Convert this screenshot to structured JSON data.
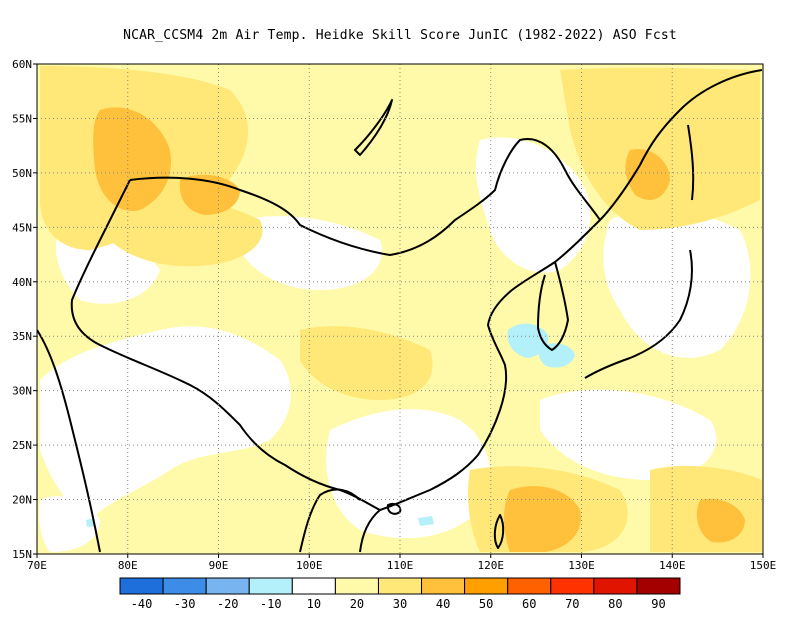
{
  "title": "NCAR_CCSM4  2m Air Temp. Heidke Skill Score JunIC (1982-2022) ASO Fcst",
  "map": {
    "lon_labels": [
      "70E",
      "80E",
      "90E",
      "100E",
      "110E",
      "120E",
      "130E",
      "140E",
      "150E"
    ],
    "lat_labels": [
      "15N",
      "20N",
      "25N",
      "30N",
      "35N",
      "40N",
      "45N",
      "50N",
      "55N",
      "60N"
    ],
    "gridlines": "dotted"
  },
  "colorbar": {
    "labels": [
      "-40",
      "-30",
      "-20",
      "-10",
      "10",
      "20",
      "30",
      "40",
      "50",
      "60",
      "70",
      "80",
      "90"
    ],
    "colors": [
      "#1e6fdc",
      "#3c8ce8",
      "#78b4f0",
      "#b4f0fa",
      "#ffffff",
      "#fffaaa",
      "#ffe878",
      "#ffc03c",
      "#ffa000",
      "#ff6000",
      "#ff3200",
      "#e11400",
      "#a50000"
    ]
  }
}
